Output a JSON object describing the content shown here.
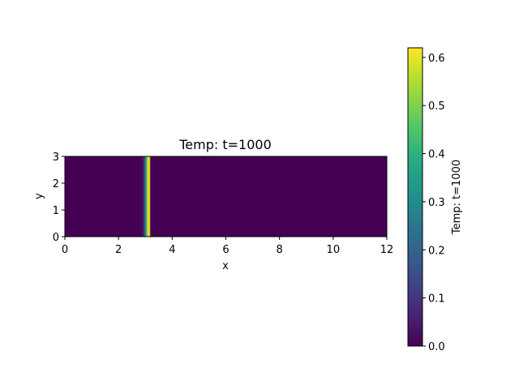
{
  "chart_data": {
    "type": "heatmap",
    "title": "Temp: t=1000",
    "xlabel": "x",
    "ylabel": "y",
    "xlim": [
      0,
      12
    ],
    "ylim": [
      0,
      3
    ],
    "xticks": [
      "0",
      "2",
      "4",
      "6",
      "8",
      "10",
      "12"
    ],
    "yticks": [
      "0",
      "1",
      "2",
      "3"
    ],
    "colormap": "viridis",
    "colorbar": {
      "label": "Temp: t=1000",
      "range": [
        0.0,
        0.62
      ],
      "ticks": [
        "0.0",
        "0.1",
        "0.2",
        "0.3",
        "0.4",
        "0.5",
        "0.6"
      ]
    },
    "field": {
      "description_uniform_in_y": true,
      "x": [
        0.0,
        2.8,
        2.9,
        2.95,
        3.0,
        3.05,
        3.1,
        3.15,
        3.2,
        12.0
      ],
      "values": [
        0.0,
        0.0,
        0.02,
        0.1,
        0.25,
        0.45,
        0.58,
        0.62,
        0.0,
        0.0
      ]
    }
  }
}
